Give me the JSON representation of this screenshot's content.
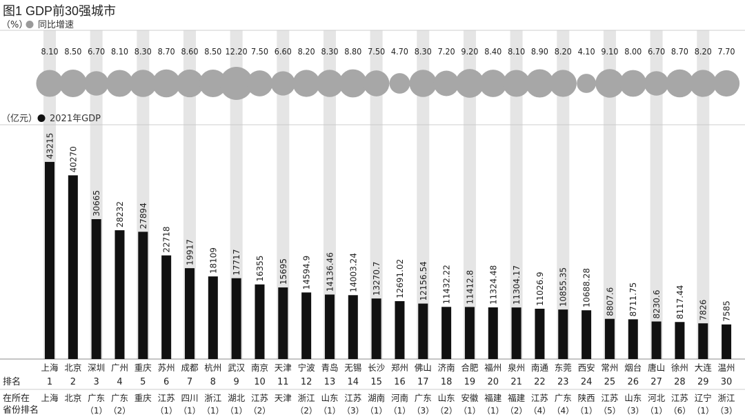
{
  "chart_data": {
    "type": "bar",
    "title": "图1 GDP前30强城市",
    "growth_unit": "（%）",
    "growth_legend": "同比增速",
    "gdp_unit": "（亿元）",
    "gdp_legend": "2021年GDP",
    "row_label_rank": "排名",
    "row_label_prov_line1": "在所在",
    "row_label_prov_line2": "省份排名",
    "ylim": [
      0,
      50000
    ],
    "cities": [
      "上海",
      "北京",
      "深圳",
      "广州",
      "重庆",
      "苏州",
      "成都",
      "杭州",
      "武汉",
      "南京",
      "天津",
      "宁波",
      "青岛",
      "无锡",
      "长沙",
      "郑州",
      "佛山",
      "济南",
      "合肥",
      "福州",
      "泉州",
      "南通",
      "东莞",
      "西安",
      "常州",
      "烟台",
      "唐山",
      "徐州",
      "大连",
      "温州"
    ],
    "gdp": [
      43215,
      40270,
      30665,
      28232,
      27894,
      22718,
      19917,
      18109,
      17717,
      16355,
      15695,
      14594.9,
      14136.46,
      14003.24,
      13270.7,
      12691.02,
      12156.54,
      11432.22,
      11412.8,
      11324.48,
      11304.17,
      11026.9,
      10855.35,
      10688.28,
      8807.6,
      8711.75,
      8230.6,
      8117.44,
      7826,
      7585
    ],
    "gdp_labels": [
      "43215",
      "40270",
      "30665",
      "28232",
      "27894",
      "22718",
      "19917",
      "18109",
      "17717",
      "16355",
      "15695",
      "14594.9",
      "14136.46",
      "14003.24",
      "13270.7",
      "12691.02",
      "12156.54",
      "11432.22",
      "11412.8",
      "11324.48",
      "11304.17",
      "11026.9",
      "10855.35",
      "10688.28",
      "8807.6",
      "8711.75",
      "8230.6",
      "8117.44",
      "7826",
      "7585"
    ],
    "growth": [
      8.1,
      8.5,
      6.7,
      8.1,
      8.3,
      8.7,
      8.6,
      8.5,
      12.2,
      7.5,
      6.6,
      8.2,
      8.3,
      8.8,
      7.5,
      4.7,
      8.3,
      7.2,
      9.2,
      8.4,
      8.1,
      8.9,
      8.2,
      4.1,
      9.1,
      8.0,
      6.7,
      8.7,
      8.2,
      7.7
    ],
    "growth_labels": [
      "8.10",
      "8.50",
      "6.70",
      "8.10",
      "8.30",
      "8.70",
      "8.60",
      "8.50",
      "12.20",
      "7.50",
      "6.60",
      "8.20",
      "8.30",
      "8.80",
      "7.50",
      "4.70",
      "8.30",
      "7.20",
      "9.20",
      "8.40",
      "8.10",
      "8.90",
      "8.20",
      "4.10",
      "9.10",
      "8.00",
      "6.70",
      "8.70",
      "8.20",
      "7.70"
    ],
    "ranks": [
      "1",
      "2",
      "3",
      "4",
      "5",
      "6",
      "7",
      "8",
      "9",
      "10",
      "11",
      "12",
      "13",
      "14",
      "15",
      "16",
      "17",
      "18",
      "19",
      "20",
      "21",
      "22",
      "23",
      "24",
      "25",
      "26",
      "27",
      "28",
      "29",
      "30"
    ],
    "provinces": [
      "上海",
      "北京",
      "广东",
      "广东",
      "重庆",
      "江苏",
      "四川",
      "浙江",
      "湖北",
      "江苏",
      "天津",
      "浙江",
      "山东",
      "江苏",
      "湖南",
      "河南",
      "广东",
      "山东",
      "安徽",
      "福建",
      "福建",
      "江苏",
      "广东",
      "陕西",
      "江苏",
      "山东",
      "河北",
      "江苏",
      "辽宁",
      "浙江"
    ],
    "province_ranks": [
      "",
      "",
      "（1）",
      "（2）",
      "",
      "（1）",
      "（1）",
      "（1）",
      "（1）",
      "（2）",
      "",
      "（2）",
      "（1）",
      "（3）",
      "（1）",
      "（1）",
      "（3）",
      "（2）",
      "（1）",
      "（1）",
      "（2）",
      "（4）",
      "（4）",
      "（1）",
      "（5）",
      "（3）",
      "（1）",
      "（6）",
      "（1）",
      "（3）"
    ],
    "colors": {
      "bar": "#111111",
      "bubble": "#a7a7a7",
      "band": "#e5e5e5",
      "text": "#222222",
      "legend_bubble": "#9a9a9a"
    }
  }
}
